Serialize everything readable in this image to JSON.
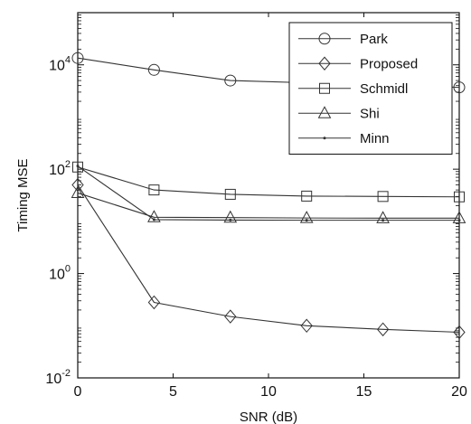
{
  "chart_data": {
    "type": "line",
    "title": "",
    "xlabel": "SNR (dB)",
    "ylabel": "Timing MSE",
    "xlim": [
      0,
      20
    ],
    "ylim": [
      0.01,
      100000
    ],
    "yscale": "log",
    "x_ticks": [
      0,
      5,
      10,
      15,
      20
    ],
    "x_tick_labels": [
      "0",
      "5",
      "10",
      "15",
      "20"
    ],
    "y_ticks": [
      0.01,
      1,
      100,
      10000
    ],
    "y_tick_labels": [
      {
        "base": "10",
        "exp": "-2"
      },
      {
        "base": "10",
        "exp": "0"
      },
      {
        "base": "10",
        "exp": "2"
      },
      {
        "base": "10",
        "exp": "4"
      }
    ],
    "grid": false,
    "legend_position": "top-right",
    "series": [
      {
        "name": "Park",
        "marker": "circle",
        "color": "#333333",
        "x": [
          0,
          4,
          8,
          20
        ],
        "y": [
          13500,
          8000,
          5000,
          3700
        ]
      },
      {
        "name": "Proposed",
        "marker": "diamond",
        "color": "#333333",
        "x": [
          0,
          4,
          8,
          12,
          16,
          20
        ],
        "y": [
          50,
          0.28,
          0.15,
          0.1,
          0.085,
          0.075
        ]
      },
      {
        "name": "Schmidl",
        "marker": "square",
        "color": "#333333",
        "x": [
          0,
          4,
          8,
          12,
          16,
          20
        ],
        "y": [
          110,
          40,
          33,
          30.5,
          30,
          29.5
        ]
      },
      {
        "name": "Shi",
        "marker": "triangle",
        "color": "#333333",
        "x": [
          0,
          4,
          8,
          12,
          16,
          20
        ],
        "y": [
          35,
          12,
          11.8,
          11.6,
          11.5,
          11.5
        ]
      },
      {
        "name": "Minn",
        "marker": "point",
        "color": "#333333",
        "x": [
          0,
          4,
          8,
          12,
          16,
          20
        ],
        "y": [
          115,
          10.8,
          10.6,
          10.5,
          10.5,
          10.5
        ]
      }
    ]
  }
}
